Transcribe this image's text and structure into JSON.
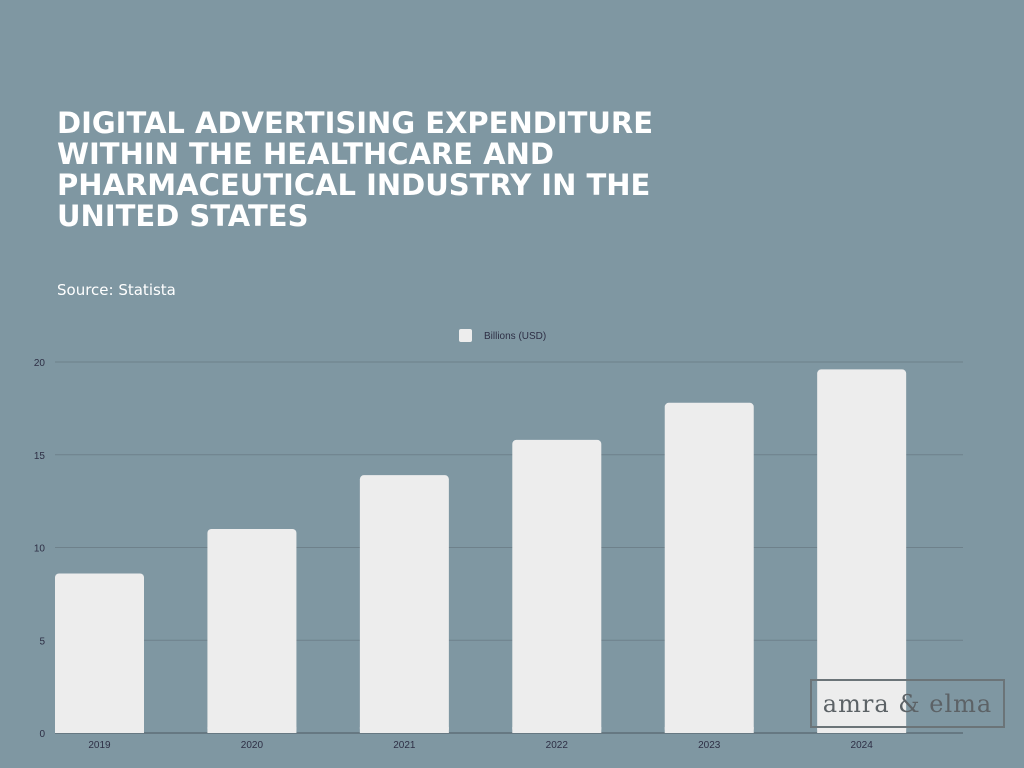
{
  "title": "DIGITAL ADVERTISING EXPENDITURE WITHIN THE HEALTHCARE AND PHARMACEUTICAL INDUSTRY IN THE UNITED STATES",
  "source": "Source: Statista",
  "watermark": "amra & elma",
  "colors": {
    "background": "#7f97a2",
    "bar": "#ededed",
    "grid": "#6e818b",
    "tick_text": "#2e2f45"
  },
  "chart_data": {
    "type": "bar",
    "categories": [
      "2019",
      "2020",
      "2021",
      "2022",
      "2023",
      "2024"
    ],
    "series": [
      {
        "name": "Billions (USD)",
        "values": [
          8.6,
          11.0,
          13.9,
          15.8,
          17.8,
          19.6
        ]
      }
    ],
    "ylim": [
      0,
      20
    ],
    "yticks": [
      "0",
      "5",
      "10",
      "15",
      "20"
    ],
    "grid": true,
    "legend": "top-center"
  }
}
